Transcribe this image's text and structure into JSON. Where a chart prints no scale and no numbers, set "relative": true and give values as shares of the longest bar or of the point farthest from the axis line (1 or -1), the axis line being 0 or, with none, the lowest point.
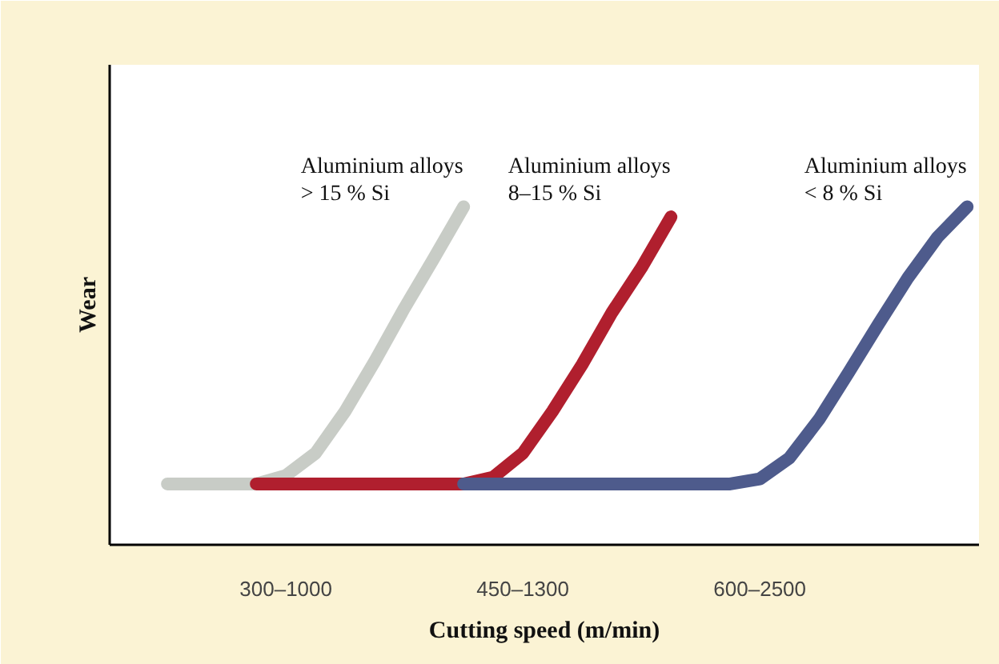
{
  "chart_data": {
    "type": "line",
    "relative": true,
    "xlabel": "Cutting speed (m/min)",
    "ylabel": "Wear",
    "categories": [
      null,
      null,
      null,
      null,
      "300–1000",
      null,
      null,
      null,
      null,
      null,
      null,
      null,
      "450–1300",
      null,
      null,
      null,
      null,
      null,
      null,
      null,
      "600–2500",
      null,
      null,
      null,
      null,
      null,
      null,
      null
    ],
    "tick_labels": "x",
    "grid": false,
    "series": [
      {
        "name": "Aluminium alloys\n> 15 % Si",
        "color": "#c8ccc6",
        "values": [
          0.18,
          0.18,
          0.18,
          0.18,
          0.205,
          0.271,
          0.395,
          0.543,
          0.7,
          0.848,
          1,
          null,
          null,
          null,
          null,
          null,
          null,
          null,
          null,
          null,
          null,
          null,
          null,
          null,
          null,
          null,
          null,
          null
        ]
      },
      {
        "name": "Aluminium alloys\n8–15 % Si",
        "color": "#b01f2e",
        "values": [
          null,
          null,
          null,
          0.18,
          0.18,
          0.18,
          0.18,
          0.18,
          0.18,
          0.18,
          0.18,
          0.2,
          0.271,
          0.395,
          0.533,
          0.686,
          0.819,
          0.97,
          null,
          null,
          null,
          null,
          null,
          null,
          null,
          null,
          null,
          null
        ]
      },
      {
        "name": "Aluminium alloys\n< 8 % Si",
        "color": "#4e5b8c",
        "values": [
          null,
          null,
          null,
          null,
          null,
          null,
          null,
          null,
          null,
          null,
          0.18,
          0.18,
          0.18,
          0.18,
          0.18,
          0.18,
          0.18,
          0.18,
          0.18,
          0.18,
          0.195,
          0.257,
          0.371,
          0.51,
          0.652,
          0.79,
          0.91,
          1
        ]
      }
    ]
  }
}
